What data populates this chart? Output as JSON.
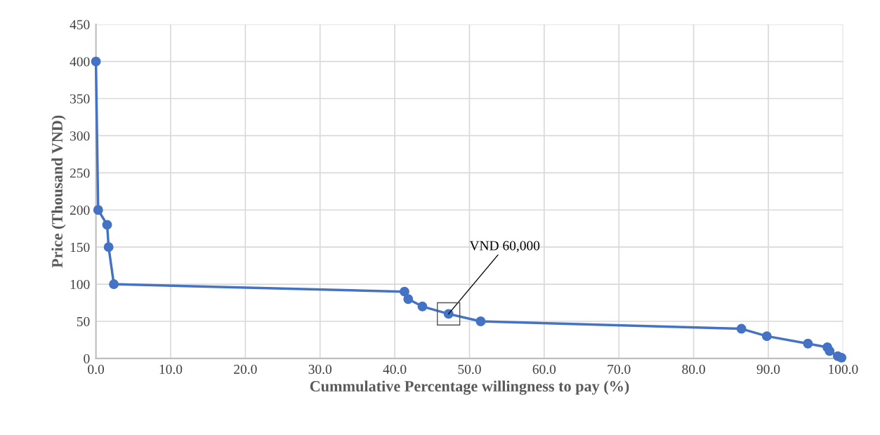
{
  "chart_data": {
    "type": "line",
    "xlabel": "Cummulative Percentage willingness to pay (%)",
    "ylabel": "Price (Thousand VND)",
    "x": [
      0.0,
      0.3,
      1.5,
      1.7,
      2.4,
      41.3,
      41.8,
      43.7,
      47.2,
      51.5,
      86.4,
      89.8,
      95.3,
      97.9,
      98.2,
      99.3,
      99.8
    ],
    "series": [
      {
        "color": "#4472c4",
        "values": [
          400,
          200,
          180,
          150,
          100,
          90,
          80,
          70,
          60,
          50,
          40,
          30,
          20,
          15,
          10,
          3,
          1
        ]
      }
    ],
    "xlim": [
      0,
      100
    ],
    "xticks": [
      {
        "value": 0,
        "label": "0.0"
      },
      {
        "value": 10,
        "label": "10.0"
      },
      {
        "value": 20,
        "label": "20.0"
      },
      {
        "value": 30,
        "label": "30.0"
      },
      {
        "value": 40,
        "label": "40.0"
      },
      {
        "value": 50,
        "label": "50.0"
      },
      {
        "value": 60,
        "label": "60.0"
      },
      {
        "value": 70,
        "label": "70.0"
      },
      {
        "value": 80,
        "label": "80.0"
      },
      {
        "value": 90,
        "label": "90.0"
      },
      {
        "value": 100,
        "label": "100.0"
      }
    ],
    "ylim": [
      0,
      450
    ],
    "yticks": [
      0,
      50,
      100,
      150,
      200,
      250,
      300,
      350,
      400,
      450
    ],
    "annotations": [
      {
        "text": "VND 60,000",
        "x": 47.2,
        "y": 60
      }
    ],
    "grid": true,
    "marker": "circle",
    "line_style": "solid",
    "legend": false
  }
}
